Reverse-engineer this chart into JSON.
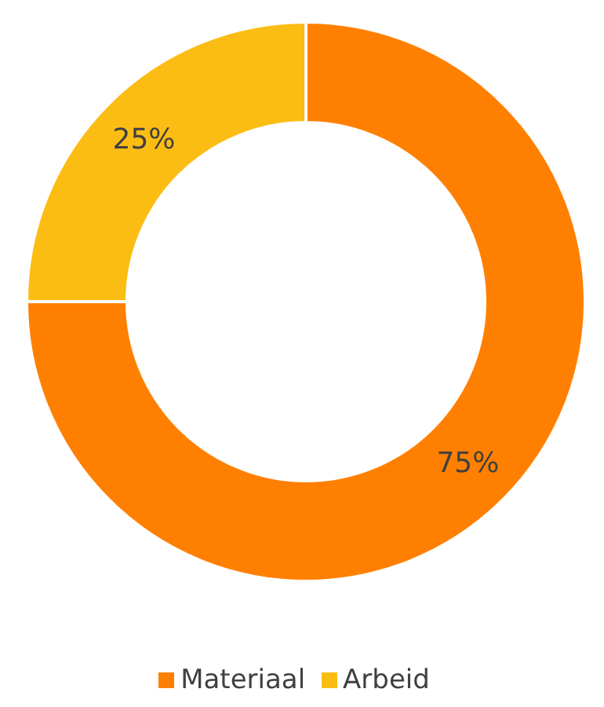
{
  "chart_data": {
    "type": "donut",
    "categories": [
      "Materiaal",
      "Arbeid"
    ],
    "values": [
      75,
      25
    ],
    "colors": [
      "#ff8000",
      "#fbbd13"
    ],
    "value_labels": [
      "75%",
      "25%"
    ],
    "legend": "bottom"
  }
}
